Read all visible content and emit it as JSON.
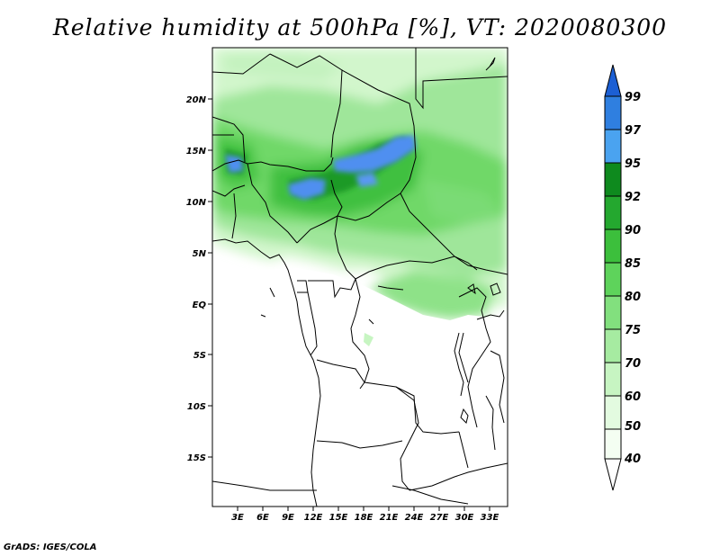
{
  "title": "Relative humidity at 500hPa [%], VT: 2020080300",
  "credit": "GrADS: IGES/COLA",
  "map": {
    "lat_ticks": [
      "20N",
      "15N",
      "10N",
      "5N",
      "EQ",
      "5S",
      "10S",
      "15S"
    ],
    "lon_ticks": [
      "3E",
      "6E",
      "9E",
      "12E",
      "15E",
      "18E",
      "21E",
      "24E",
      "27E",
      "30E",
      "33E"
    ]
  },
  "colorbar": {
    "labels": [
      "99",
      "97",
      "95",
      "92",
      "90",
      "85",
      "80",
      "75",
      "70",
      "60",
      "50",
      "40"
    ],
    "colors": [
      "#1c5fd4",
      "#2f7fe0",
      "#4aa3f0",
      "#0e8a1e",
      "#24a82f",
      "#3cbf3c",
      "#5ed35b",
      "#82e07e",
      "#a6eba1",
      "#c7f5c2",
      "#e3fbe0",
      "#f4fef2",
      "#ffffff"
    ],
    "units": "%"
  }
}
